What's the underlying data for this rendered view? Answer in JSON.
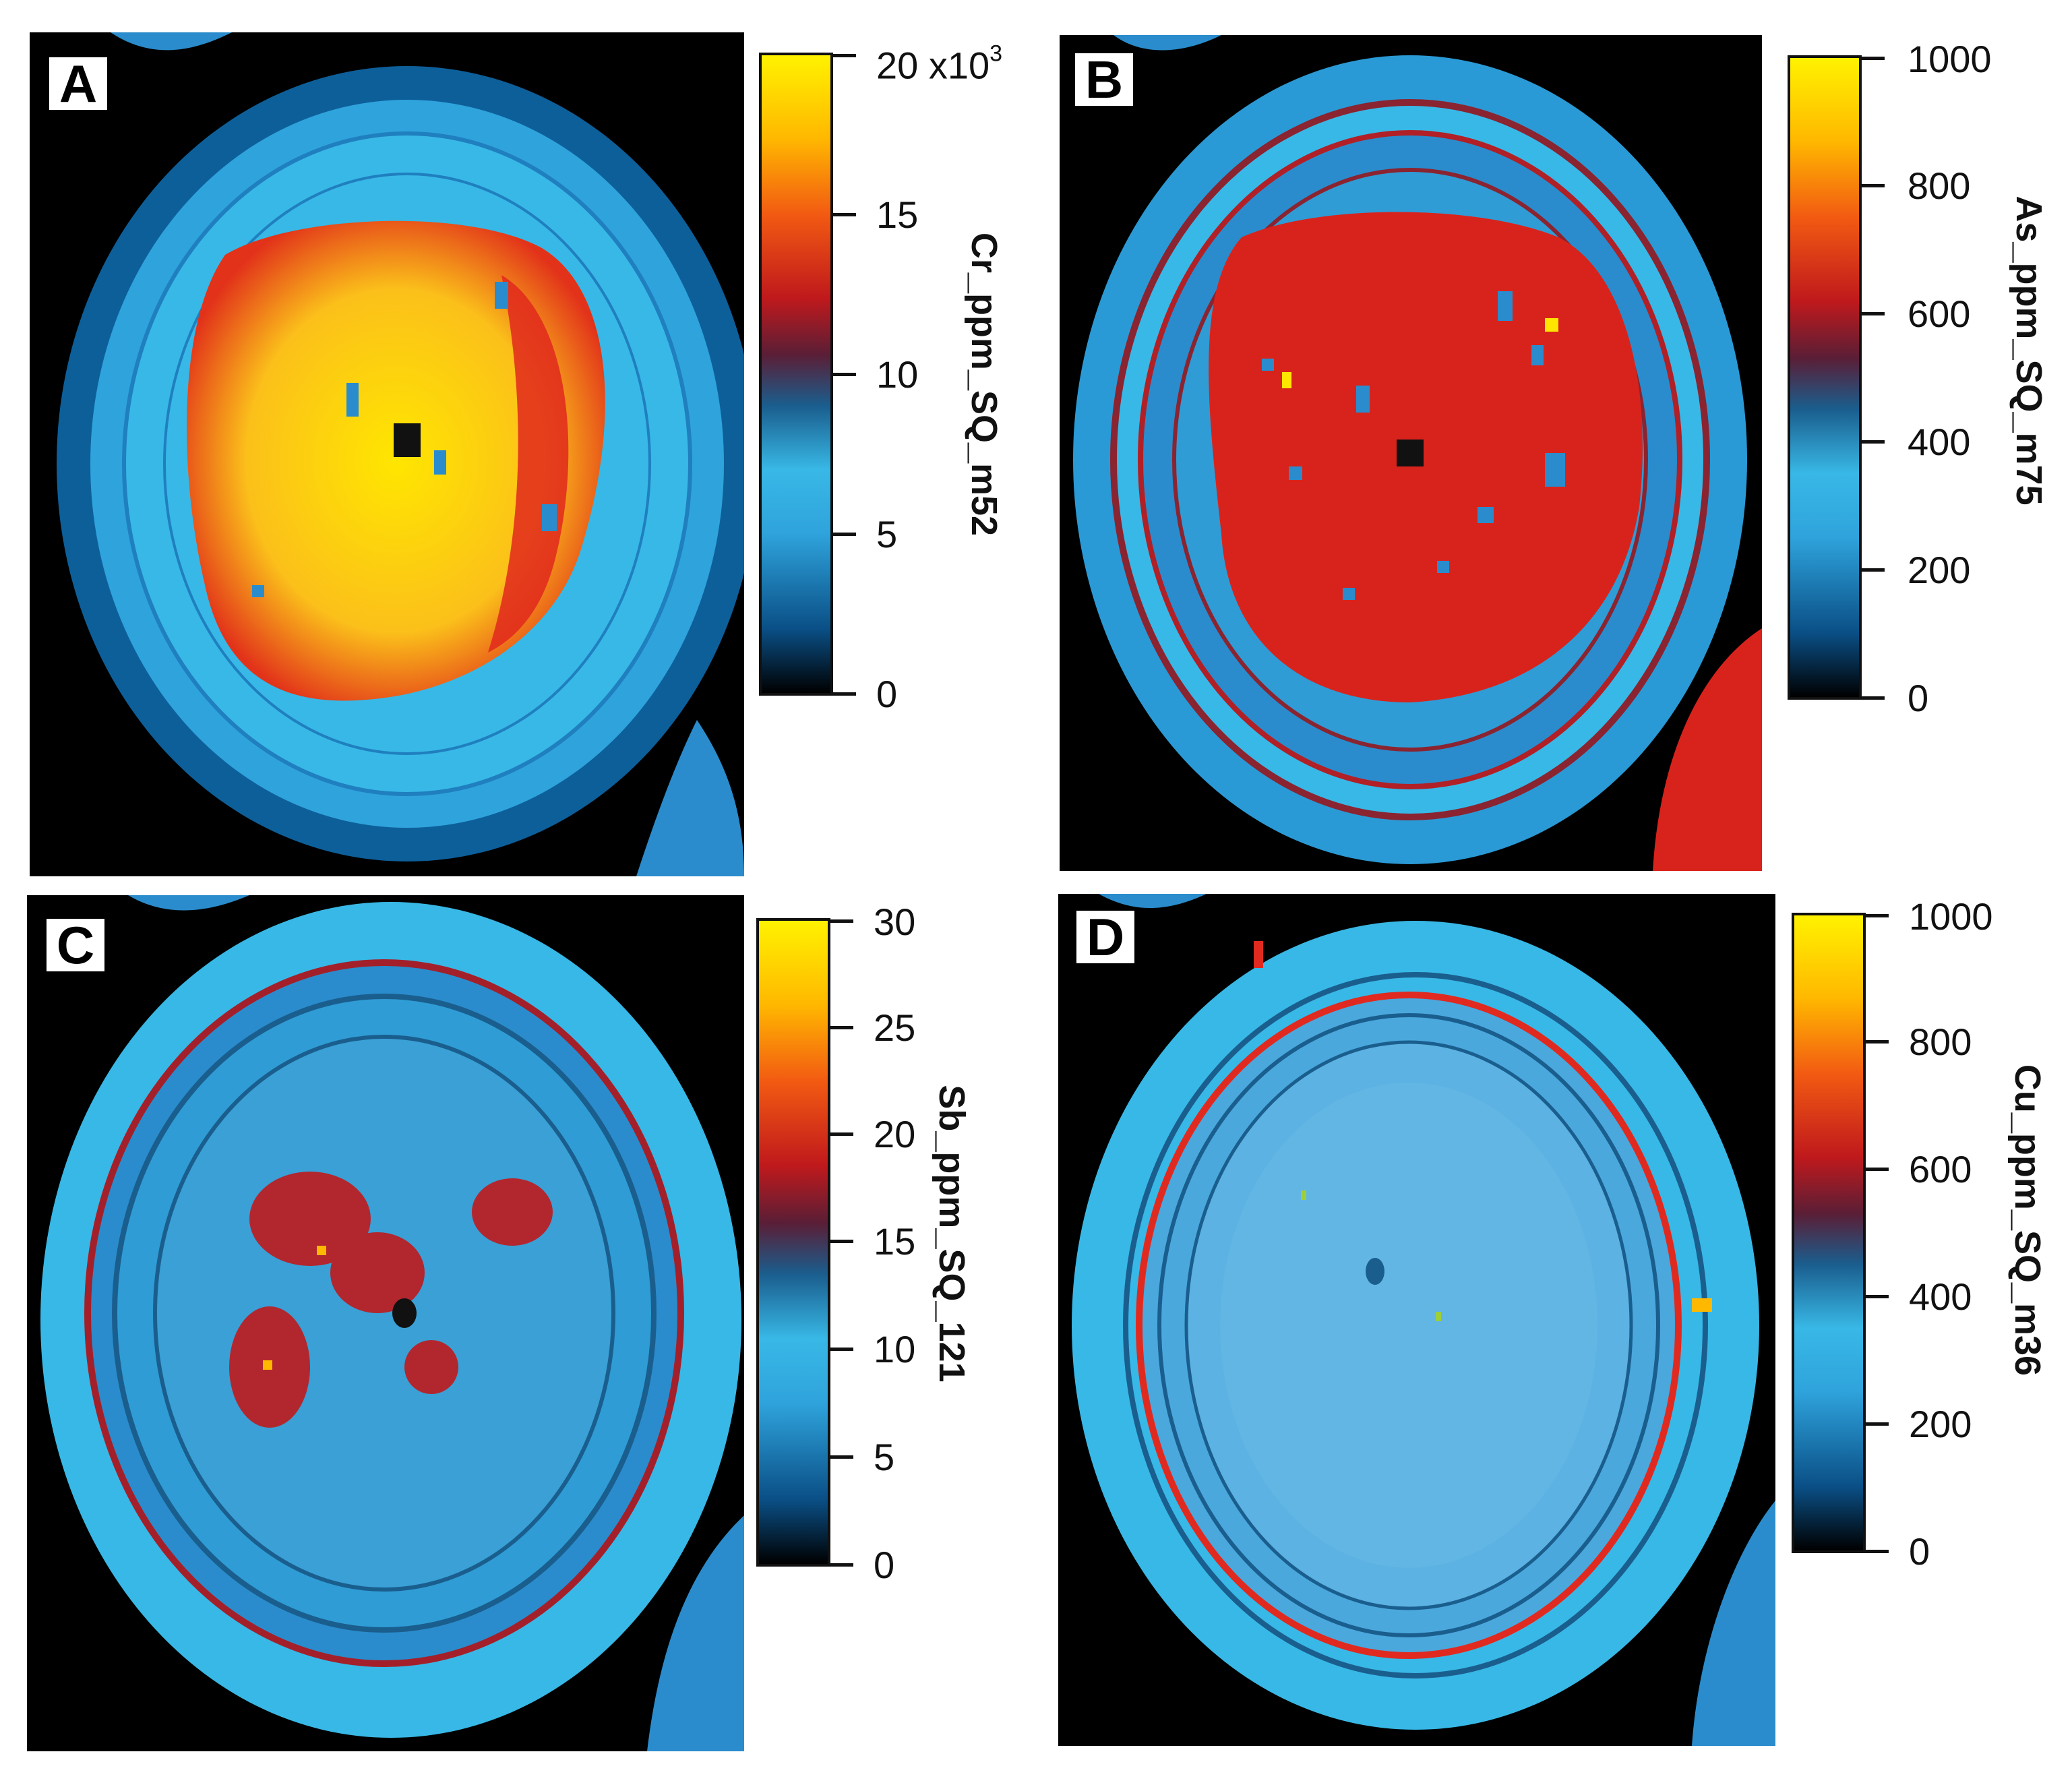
{
  "colormap": [
    "#000000",
    "#0a4f86",
    "#2fa3dc",
    "#38b8e6",
    "#5a1e36",
    "#c0191c",
    "#f25a12",
    "#ffb800",
    "#fff200"
  ],
  "panels": [
    {
      "letter": "A",
      "scale_title": "Cr_ppm_SQ_m52",
      "ticks": [
        "0",
        "5",
        "10",
        "15",
        "20 x10"
      ],
      "tick_exponent": "3",
      "inner_color": "#f7a61b",
      "inner_mid": "#ffe600",
      "inner_edge": "#d9241a",
      "rim_color": "#38b8e6"
    },
    {
      "letter": "B",
      "scale_title": "As_ppm_SQ_m75",
      "ticks": [
        "0",
        "200",
        "400",
        "600",
        "800",
        "1000"
      ],
      "inner_color": "#d8231c",
      "inner_mid": "#e0281d",
      "inner_edge": "#b81b1f",
      "rim_color": "#2a9ad6"
    },
    {
      "letter": "C",
      "scale_title": "Sb_ppm_SQ_121",
      "ticks": [
        "0",
        "5",
        "10",
        "15",
        "20",
        "25",
        "30"
      ],
      "inner_color": "#2b8fc9",
      "inner_mid": "#3aa0d6",
      "inner_edge": "#a3202a",
      "rim_color": "#38b8e6"
    },
    {
      "letter": "D",
      "scale_title": "Cu_ppm_SQ_m36",
      "ticks": [
        "0",
        "200",
        "400",
        "600",
        "800",
        "1000"
      ],
      "inner_color": "#4aa8dd",
      "inner_mid": "#5cb2e2",
      "inner_edge": "#e02a20",
      "rim_color": "#38b8e6"
    }
  ]
}
